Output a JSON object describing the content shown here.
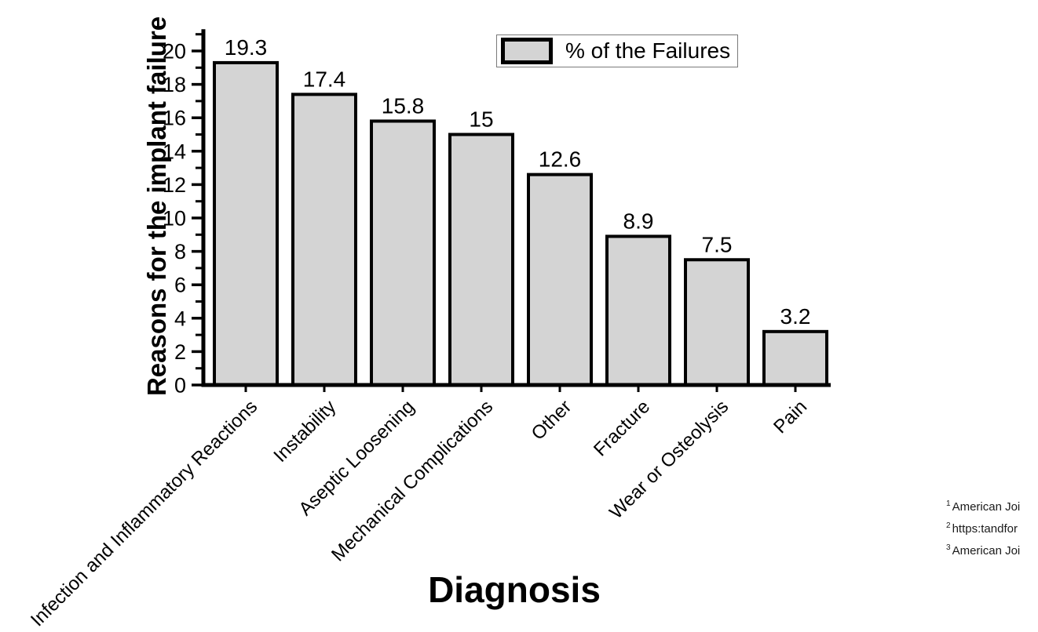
{
  "page": {
    "background": "#ffffff",
    "text_color": "#000000"
  },
  "chart_data": {
    "type": "bar",
    "title": "",
    "categories": [
      "Infection and Inflammatory Reactions",
      "Instability",
      "Aseptic Loosening",
      "Mechanical Complications",
      "Other",
      "Fracture",
      "Wear or Osteolysis",
      "Pain"
    ],
    "values": [
      19.3,
      17.4,
      15.8,
      15,
      12.6,
      8.9,
      7.5,
      3.2
    ],
    "value_labels": [
      "19.3",
      "17.4",
      "15.8",
      "15",
      "12.6",
      "8.9",
      "7.5",
      "3.2"
    ],
    "xlabel": "Diagnosis",
    "ylabel": "Reasons for the implant failure",
    "ylim": [
      0,
      21.3
    ],
    "y_major_ticks": [
      0,
      2,
      4,
      6,
      8,
      10,
      12,
      14,
      16,
      18,
      20
    ],
    "y_minor_ticks": [
      1,
      3,
      5,
      7,
      9,
      11,
      13,
      15,
      17,
      19,
      21
    ],
    "grid": false,
    "legend": {
      "label": "% of the Failures",
      "position": "top-right"
    },
    "bar_fill": "#d4d4d4",
    "bar_stroke": "#000000",
    "axis_color": "#000000"
  },
  "footnotes": [
    {
      "marker": "1",
      "text": "American Joi"
    },
    {
      "marker": "2",
      "text": "https:tandfor"
    },
    {
      "marker": "3",
      "text": "American Joi"
    }
  ]
}
